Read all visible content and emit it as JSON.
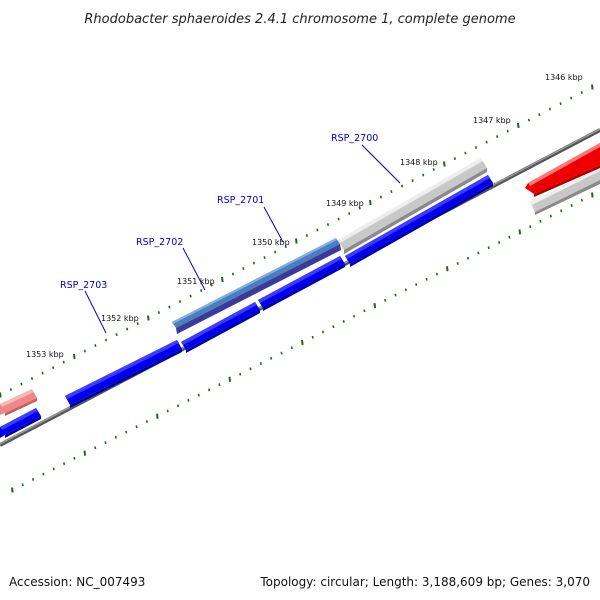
{
  "title": "Rhodobacter sphaeroides 2.4.1 chromosome 1, complete genome",
  "footer": {
    "accession": "Accession: NC_007493",
    "summary": "Topology: circular; Length: 3,188,609 bp; Genes: 3,070"
  },
  "ruler_labels": [
    "1346 kbp",
    "1347 kbp",
    "1348 kbp",
    "1349 kbp",
    "1350 kbp",
    "1351 kbp",
    "1352 kbp",
    "1353 kbp"
  ],
  "gene_labels": [
    "RSP_2700",
    "RSP_2701",
    "RSP_2702",
    "RSP_2703"
  ],
  "colors": {
    "forward_gene": "#0000ee",
    "gene_bevel": "#0000aa",
    "grey_feature": "#bbbbbb",
    "red_feature": "#ee0000",
    "pink_feature": "#ee8888",
    "steel_feature": "#4a7fbf",
    "backbone": "#777777",
    "tick": "#1a6b1a",
    "label": "#0000cc"
  }
}
